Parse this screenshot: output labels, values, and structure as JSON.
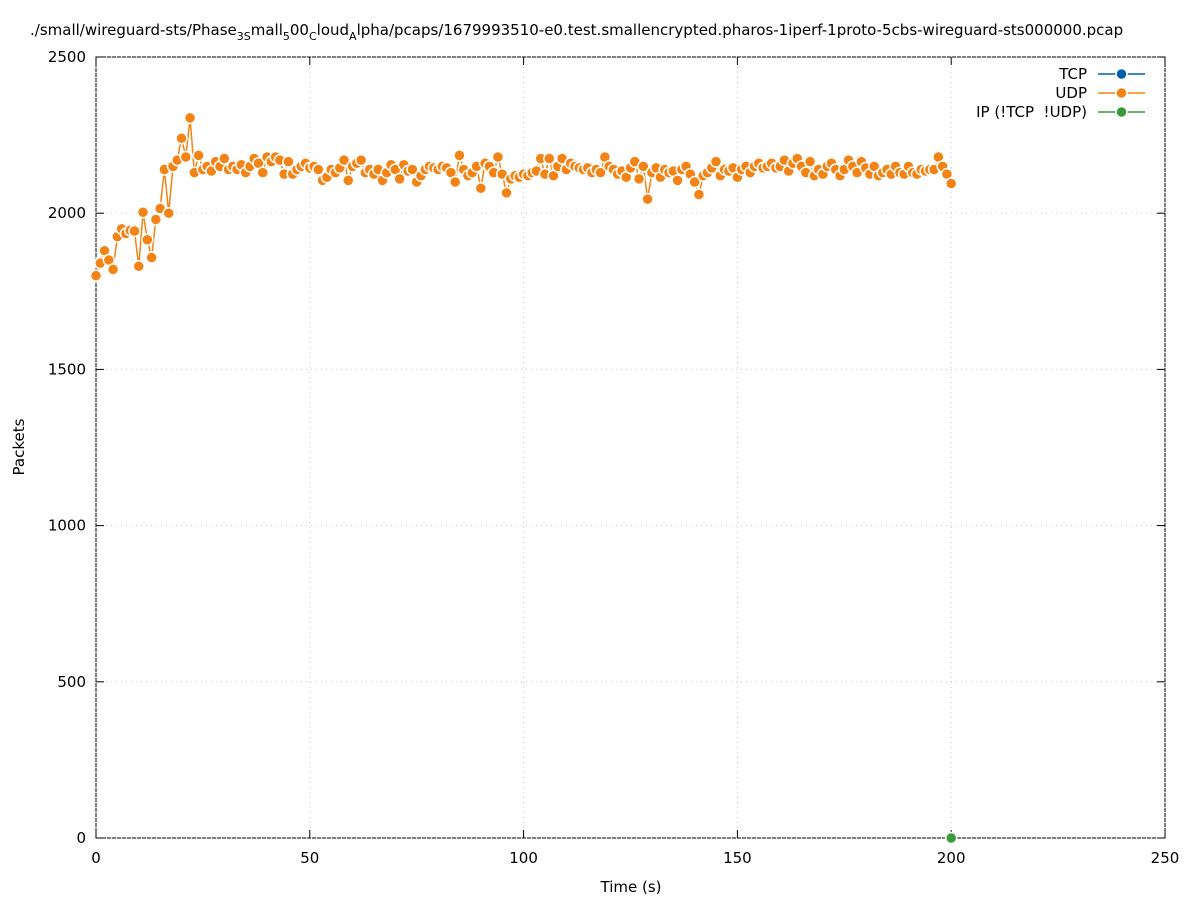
{
  "chart_data": {
    "type": "line",
    "title_parts": [
      {
        "text": "./small/wireguard-sts/Phase",
        "subscript": false
      },
      {
        "text": "3S",
        "subscript": true
      },
      {
        "text": "mall",
        "subscript": false
      },
      {
        "text": "5",
        "subscript": true
      },
      {
        "text": "00",
        "subscript": false
      },
      {
        "text": "C",
        "subscript": true
      },
      {
        "text": "loud",
        "subscript": false
      },
      {
        "text": "A",
        "subscript": true
      },
      {
        "text": "lpha/pcaps/1679993510-e0.test.smallencrypted.pharos-1iperf-1proto-5cbs-wireguard-sts000000.pcap",
        "subscript": false
      }
    ],
    "x_label": "Time (s)",
    "y_label": "Packets",
    "xlim": [
      0,
      250
    ],
    "xticks": [
      0,
      50,
      100,
      150,
      200,
      250
    ],
    "ylim": [
      0,
      2500
    ],
    "yticks": [
      0,
      500,
      1000,
      1500,
      2000,
      2500
    ],
    "grid": true,
    "legend": "top-right",
    "series": [
      {
        "name": "TCP",
        "color": "#0060ad",
        "x": [],
        "values": []
      },
      {
        "name": "UDP",
        "color": "#f28314",
        "x": [
          0,
          1,
          2,
          3,
          4,
          5,
          6,
          7,
          8,
          9,
          10,
          11,
          12,
          13,
          14,
          15,
          16,
          17,
          18,
          19,
          20,
          21,
          22,
          23,
          24,
          25,
          26,
          27,
          28,
          29,
          30,
          31,
          32,
          33,
          34,
          35,
          36,
          37,
          38,
          39,
          40,
          41,
          42,
          43,
          44,
          45,
          46,
          47,
          48,
          49,
          50,
          51,
          52,
          53,
          54,
          55,
          56,
          57,
          58,
          59,
          60,
          61,
          62,
          63,
          64,
          65,
          66,
          67,
          68,
          69,
          70,
          71,
          72,
          73,
          74,
          75,
          76,
          77,
          78,
          79,
          80,
          81,
          82,
          83,
          84,
          85,
          86,
          87,
          88,
          89,
          90,
          91,
          92,
          93,
          94,
          95,
          96,
          97,
          98,
          99,
          100,
          101,
          102,
          103,
          104,
          105,
          106,
          107,
          108,
          109,
          110,
          111,
          112,
          113,
          114,
          115,
          116,
          117,
          118,
          119,
          120,
          121,
          122,
          123,
          124,
          125,
          126,
          127,
          128,
          129,
          130,
          131,
          132,
          133,
          134,
          135,
          136,
          137,
          138,
          139,
          140,
          141,
          142,
          143,
          144,
          145,
          146,
          147,
          148,
          149,
          150,
          151,
          152,
          153,
          154,
          155,
          156,
          157,
          158,
          159,
          160,
          161,
          162,
          163,
          164,
          165,
          166,
          167,
          168,
          169,
          170,
          171,
          172,
          173,
          174,
          175,
          176,
          177,
          178,
          179,
          180,
          181,
          182,
          183,
          184,
          185,
          186,
          187,
          188,
          189,
          190,
          191,
          192,
          193,
          194,
          195,
          196,
          197,
          198,
          199,
          200
        ],
        "values": [
          1800,
          1840,
          1880,
          1850,
          1820,
          1925,
          1950,
          1935,
          1945,
          1943,
          1830,
          2003,
          1915,
          1858,
          1980,
          2015,
          2140,
          2000,
          2150,
          2170,
          2240,
          2180,
          2305,
          2130,
          2185,
          2140,
          2150,
          2135,
          2165,
          2150,
          2175,
          2140,
          2150,
          2140,
          2155,
          2130,
          2150,
          2175,
          2160,
          2130,
          2180,
          2165,
          2180,
          2170,
          2125,
          2165,
          2125,
          2140,
          2150,
          2160,
          2145,
          2150,
          2140,
          2105,
          2115,
          2140,
          2130,
          2145,
          2170,
          2105,
          2150,
          2160,
          2170,
          2130,
          2140,
          2125,
          2140,
          2105,
          2130,
          2155,
          2140,
          2110,
          2155,
          2135,
          2140,
          2100,
          2120,
          2140,
          2150,
          2145,
          2140,
          2150,
          2145,
          2130,
          2100,
          2185,
          2140,
          2120,
          2130,
          2150,
          2080,
          2160,
          2150,
          2130,
          2180,
          2125,
          2065,
          2110,
          2120,
          2115,
          2125,
          2120,
          2130,
          2135,
          2175,
          2125,
          2175,
          2120,
          2150,
          2175,
          2140,
          2160,
          2150,
          2145,
          2140,
          2145,
          2130,
          2140,
          2130,
          2180,
          2150,
          2140,
          2125,
          2135,
          2115,
          2145,
          2165,
          2110,
          2150,
          2045,
          2130,
          2145,
          2115,
          2140,
          2130,
          2135,
          2105,
          2140,
          2150,
          2125,
          2100,
          2060,
          2120,
          2130,
          2145,
          2165,
          2120,
          2140,
          2135,
          2145,
          2115,
          2140,
          2150,
          2130,
          2150,
          2160,
          2145,
          2150,
          2160,
          2145,
          2150,
          2170,
          2135,
          2160,
          2175,
          2150,
          2130,
          2165,
          2120,
          2140,
          2125,
          2150,
          2160,
          2140,
          2120,
          2140,
          2170,
          2150,
          2130,
          2165,
          2145,
          2125,
          2150,
          2120,
          2130,
          2140,
          2125,
          2150,
          2130,
          2125,
          2150,
          2130,
          2125,
          2140,
          2135,
          2140,
          2140,
          2180,
          2150,
          2125,
          2095
        ]
      },
      {
        "name": "IP (!TCP  !UDP)",
        "color": "#3a9a3a",
        "x": [
          200
        ],
        "values": [
          0
        ]
      }
    ]
  }
}
